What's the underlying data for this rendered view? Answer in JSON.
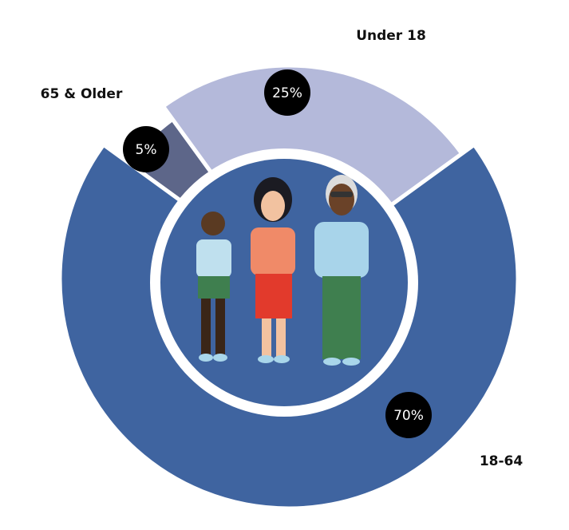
{
  "chart_data": {
    "type": "donut",
    "categories": [
      "65 & Older",
      "Under 18",
      "18-64"
    ],
    "values": [
      5,
      25,
      70
    ],
    "value_labels": [
      "5%",
      "25%",
      "70%"
    ],
    "colors": [
      "#5d6689",
      "#b4b9da",
      "#3f64a0"
    ]
  }
}
